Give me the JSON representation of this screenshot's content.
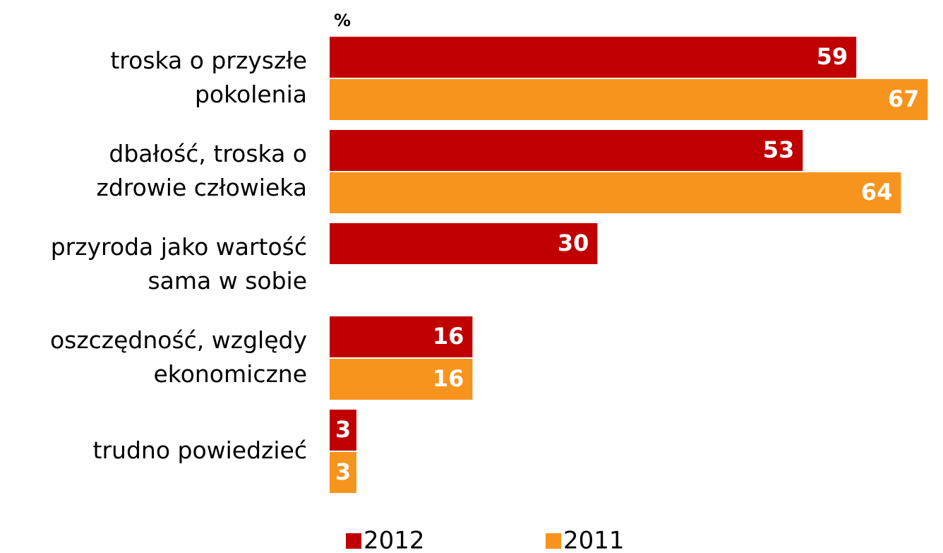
{
  "chart_data": {
    "type": "bar",
    "orientation": "horizontal",
    "unit_label": "%",
    "categories": [
      [
        "troska o przyszłe",
        "pokolenia"
      ],
      [
        "dbałość, troska o",
        "zdrowie człowieka"
      ],
      [
        "przyroda jako wartość",
        "sama w sobie"
      ],
      [
        "oszczędność, względy",
        "ekonomiczne"
      ],
      [
        "trudno powiedzieć"
      ]
    ],
    "series": [
      {
        "name": "2012",
        "color": "#c00000",
        "values": [
          59,
          53,
          30,
          16,
          3
        ]
      },
      {
        "name": "2011",
        "color": "#f7941d",
        "values": [
          67,
          64,
          null,
          16,
          3
        ]
      }
    ],
    "xlim": [
      0,
      68
    ],
    "legend": "bottom"
  }
}
